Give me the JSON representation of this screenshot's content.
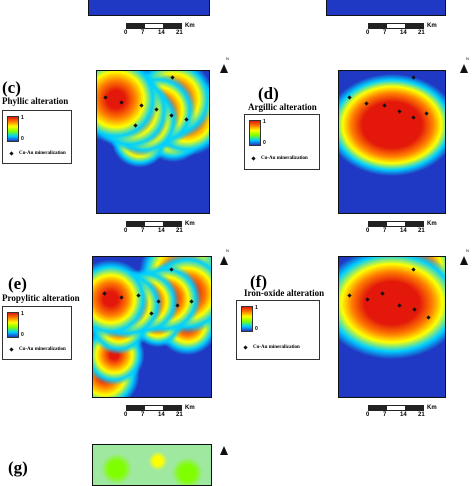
{
  "colors": {
    "low": "#1f39c4",
    "high": "#e3170a",
    "mid": "#ffff00"
  },
  "scale": {
    "ticks": [
      "0",
      "7",
      "14",
      "21"
    ],
    "unit": "Km"
  },
  "legend": {
    "max": "1",
    "min": "0",
    "deposit_label": "Cu-Au mineralization",
    "deposit_icon": "diamond-icon"
  },
  "north_label": "N",
  "panels": {
    "c": {
      "letter": "(c)",
      "title": "Phyllic alteration"
    },
    "d": {
      "letter": "(d)",
      "title": "Argillic alteration"
    },
    "e": {
      "letter": "(e)",
      "title": "Propylitic alteration"
    },
    "f": {
      "letter": "(f)",
      "title": "Iron-oxide alteration"
    },
    "g": {
      "letter": "(g)",
      "title": ""
    }
  }
}
